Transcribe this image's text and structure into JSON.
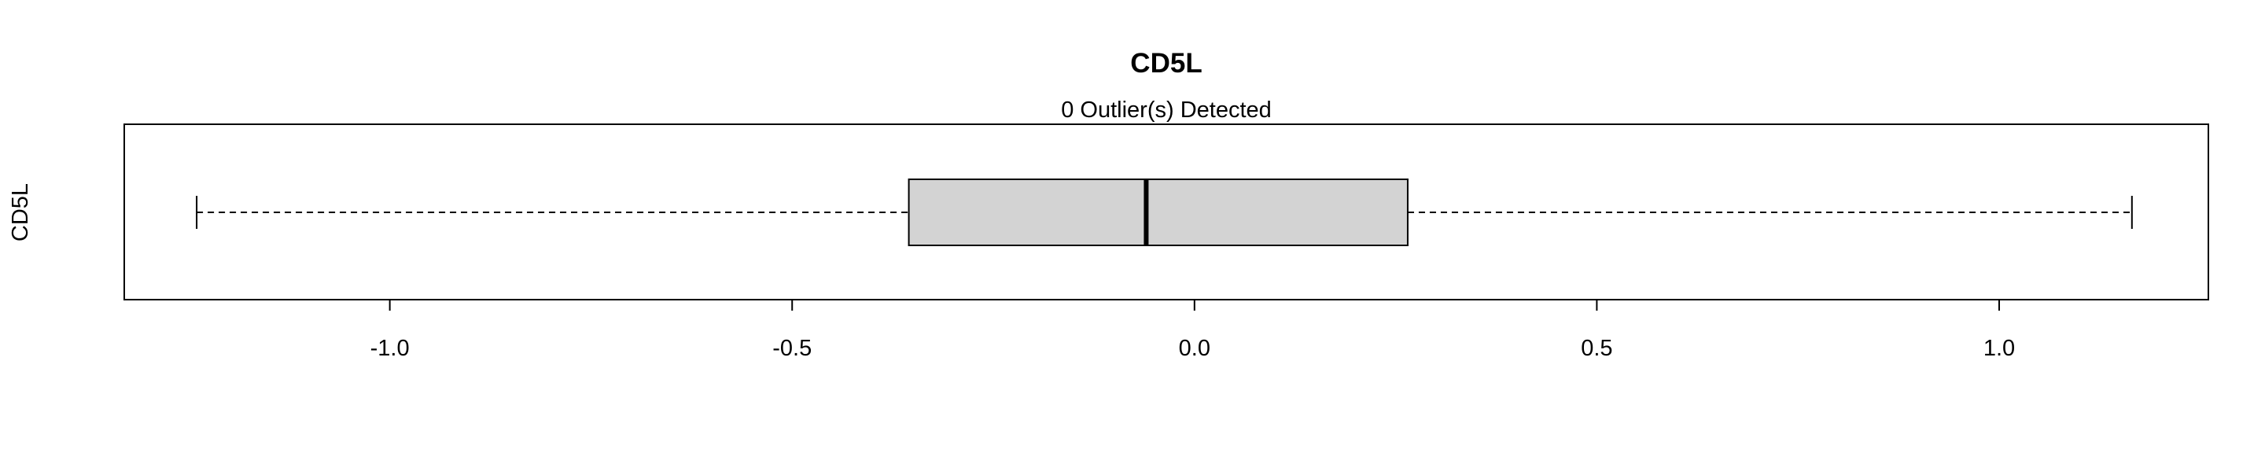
{
  "chart_data": {
    "type": "boxplot",
    "orientation": "horizontal",
    "title": "CD5L",
    "subtitle": "0 Outlier(s) Detected",
    "ylabel": "CD5L",
    "xlabel": "",
    "xlim": [
      -1.33,
      1.26
    ],
    "x_ticks": [
      -1.0,
      -0.5,
      0.0,
      0.5,
      1.0
    ],
    "x_tick_labels": [
      "-1.0",
      "-0.5",
      "0.0",
      "0.5",
      "1.0"
    ],
    "series": [
      {
        "name": "CD5L",
        "whisker_low": -1.24,
        "q1": -0.355,
        "median": -0.06,
        "q3": 0.265,
        "whisker_high": 1.165,
        "outliers": []
      }
    ],
    "colors": {
      "box_fill": "#d3d3d3",
      "stroke": "#000000"
    },
    "grid": false
  }
}
